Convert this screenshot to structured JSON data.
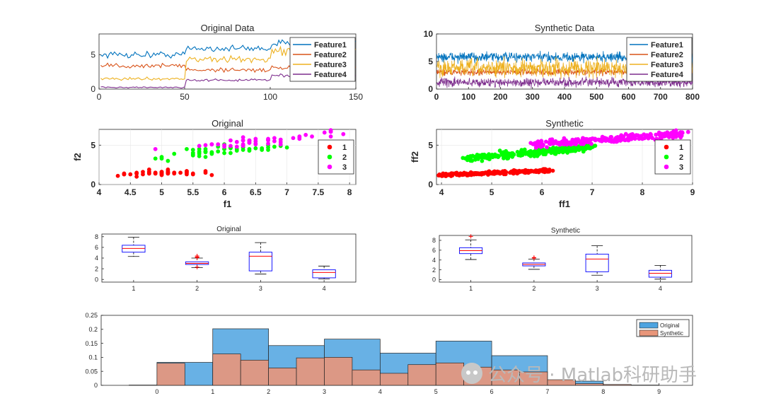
{
  "watermark": "公众号 · Matlab科研助手",
  "colors": {
    "feature": [
      "#0072BD",
      "#D95319",
      "#EDB120",
      "#7E2F8E"
    ],
    "cluster": [
      "#FF0000",
      "#00FF00",
      "#FF00FF"
    ],
    "box_blue": "#0000FF",
    "box_red": "#FF0000",
    "hist_original": "#4DA3E0",
    "hist_synthetic": "#E9967A"
  },
  "chart_data": [
    {
      "id": "original_data",
      "type": "line",
      "title": "Original Data",
      "xlim": [
        0,
        150
      ],
      "ylim": [
        0,
        8
      ],
      "xticks": [
        "0",
        "50",
        "100",
        "150"
      ],
      "yticks": [
        "0",
        "5"
      ],
      "legend": "top-right",
      "series": [
        {
          "name": "Feature1",
          "segments": [
            {
              "x": [
                1,
                50
              ],
              "mean": 5.0,
              "amp": 0.5
            },
            {
              "x": [
                51,
                100
              ],
              "mean": 5.9,
              "amp": 0.5
            },
            {
              "x": [
                101,
                150
              ],
              "mean": 6.6,
              "amp": 0.5
            }
          ]
        },
        {
          "name": "Feature2",
          "segments": [
            {
              "x": [
                1,
                50
              ],
              "mean": 3.4,
              "amp": 0.4
            },
            {
              "x": [
                51,
                100
              ],
              "mean": 2.8,
              "amp": 0.35
            },
            {
              "x": [
                101,
                150
              ],
              "mean": 3.0,
              "amp": 0.35
            }
          ]
        },
        {
          "name": "Feature3",
          "segments": [
            {
              "x": [
                1,
                50
              ],
              "mean": 1.5,
              "amp": 0.2
            },
            {
              "x": [
                51,
                100
              ],
              "mean": 4.3,
              "amp": 0.5
            },
            {
              "x": [
                101,
                150
              ],
              "mean": 5.5,
              "amp": 0.6
            }
          ]
        },
        {
          "name": "Feature4",
          "segments": [
            {
              "x": [
                1,
                50
              ],
              "mean": 0.25,
              "amp": 0.1
            },
            {
              "x": [
                51,
                100
              ],
              "mean": 1.3,
              "amp": 0.2
            },
            {
              "x": [
                101,
                150
              ],
              "mean": 2.0,
              "amp": 0.25
            }
          ]
        }
      ]
    },
    {
      "id": "synthetic_data",
      "type": "line",
      "title": "Synthetic Data",
      "xlim": [
        0,
        800
      ],
      "ylim": [
        0,
        10
      ],
      "xticks": [
        "0",
        "100",
        "200",
        "300",
        "400",
        "500",
        "600",
        "700",
        "800"
      ],
      "yticks": [
        "0",
        "5",
        "10"
      ],
      "legend": "top-right",
      "series": [
        {
          "name": "Feature1",
          "mean": 5.8,
          "amp": 0.9
        },
        {
          "name": "Feature2",
          "mean": 3.1,
          "amp": 0.6
        },
        {
          "name": "Feature3",
          "mean": 3.8,
          "amp": 1.6
        },
        {
          "name": "Feature4",
          "mean": 1.2,
          "amp": 0.8
        }
      ]
    },
    {
      "id": "original_scatter",
      "type": "scatter",
      "title": "Original",
      "xlabel": "f1",
      "ylabel": "f2",
      "xlim": [
        4,
        8.1
      ],
      "ylim": [
        0,
        7
      ],
      "xticks": [
        "4",
        "4.5",
        "5",
        "5.5",
        "6",
        "6.5",
        "7",
        "7.5",
        "8"
      ],
      "yticks": [
        "0",
        "5"
      ],
      "legend": "right",
      "clusters": [
        {
          "name": "1",
          "x": [
            5.1,
            4.9,
            4.7,
            4.6,
            5.0,
            5.4,
            4.6,
            5.0,
            4.4,
            4.9,
            5.4,
            4.8,
            4.8,
            4.3,
            5.8,
            5.7,
            5.4,
            5.1,
            5.7,
            5.1,
            5.4,
            5.1,
            4.6,
            5.1,
            4.8,
            5.0,
            5.0,
            5.2,
            5.2,
            4.7,
            4.8,
            5.4,
            5.2,
            5.5,
            4.9,
            5.0,
            5.5,
            4.9,
            4.4,
            5.1,
            5.0,
            4.5,
            4.4,
            5.0,
            5.1,
            4.8,
            5.1,
            4.6,
            5.3,
            5.0
          ],
          "y": [
            1.4,
            1.4,
            1.3,
            1.5,
            1.4,
            1.7,
            1.4,
            1.5,
            1.4,
            1.5,
            1.5,
            1.6,
            1.4,
            1.1,
            1.2,
            1.5,
            1.3,
            1.4,
            1.7,
            1.5,
            1.7,
            1.5,
            1.0,
            1.7,
            1.9,
            1.6,
            1.6,
            1.5,
            1.4,
            1.6,
            1.6,
            1.5,
            1.5,
            1.4,
            1.5,
            1.2,
            1.3,
            1.4,
            1.3,
            1.5,
            1.3,
            1.3,
            1.3,
            1.6,
            1.9,
            1.4,
            1.6,
            1.4,
            1.5,
            1.4
          ]
        },
        {
          "name": "2",
          "x": [
            7.0,
            6.4,
            6.9,
            5.5,
            6.5,
            5.7,
            6.3,
            4.9,
            6.6,
            5.2,
            5.0,
            5.9,
            6.0,
            6.1,
            5.6,
            6.7,
            5.6,
            5.8,
            6.2,
            5.6,
            5.9,
            6.1,
            6.3,
            6.1,
            6.4,
            6.6,
            6.8,
            6.7,
            6.0,
            5.7,
            5.5,
            5.5,
            5.8,
            6.0,
            5.4,
            6.0,
            6.7,
            6.3,
            5.6,
            5.5,
            5.5,
            6.1,
            5.8,
            5.0,
            5.6,
            5.7,
            5.7,
            6.2,
            5.1,
            5.7
          ],
          "y": [
            4.7,
            4.5,
            4.9,
            4.0,
            4.6,
            4.5,
            4.7,
            3.3,
            4.6,
            3.9,
            3.5,
            4.2,
            4.0,
            4.7,
            3.6,
            4.4,
            4.5,
            4.1,
            4.5,
            3.9,
            4.8,
            4.0,
            4.9,
            4.7,
            4.3,
            4.4,
            4.8,
            5.0,
            4.5,
            3.5,
            3.8,
            3.7,
            3.9,
            5.1,
            4.5,
            4.5,
            4.7,
            4.4,
            4.1,
            4.0,
            4.4,
            4.6,
            4.0,
            3.3,
            4.2,
            4.2,
            4.2,
            4.3,
            3.0,
            4.1
          ]
        },
        {
          "name": "3",
          "x": [
            6.3,
            5.8,
            7.1,
            6.3,
            6.5,
            7.6,
            4.9,
            7.3,
            6.7,
            7.2,
            6.5,
            6.4,
            6.8,
            5.7,
            5.8,
            6.4,
            6.5,
            7.7,
            7.7,
            6.0,
            6.9,
            5.6,
            7.7,
            6.3,
            6.7,
            7.2,
            6.2,
            6.1,
            6.4,
            7.2,
            7.4,
            7.9,
            6.4,
            6.3,
            6.1,
            7.7,
            6.3,
            6.4,
            6.0,
            6.9,
            6.7,
            6.9,
            5.8,
            6.8,
            6.7,
            6.7,
            6.3,
            6.5,
            6.2,
            5.9
          ],
          "y": [
            6.0,
            5.1,
            5.9,
            5.6,
            5.8,
            6.6,
            4.5,
            6.3,
            5.8,
            6.1,
            5.1,
            5.3,
            5.5,
            5.0,
            5.1,
            5.3,
            5.5,
            6.7,
            6.9,
            5.0,
            5.7,
            4.9,
            6.7,
            4.9,
            5.7,
            6.0,
            4.8,
            4.9,
            5.6,
            5.8,
            6.1,
            6.4,
            5.6,
            5.1,
            5.6,
            6.1,
            5.6,
            5.5,
            4.8,
            5.4,
            5.6,
            5.1,
            5.1,
            5.9,
            5.7,
            5.2,
            5.0,
            5.2,
            5.4,
            5.1
          ]
        }
      ]
    },
    {
      "id": "synthetic_scatter",
      "type": "scatter",
      "title": "Synthetic",
      "xlabel": "ff1",
      "ylabel": "ff2",
      "xlim": [
        3.9,
        9
      ],
      "ylim": [
        0,
        7
      ],
      "xticks": [
        "4",
        "5",
        "6",
        "7",
        "8",
        "9"
      ],
      "yticks": [
        "0",
        "5"
      ],
      "legend": "right",
      "clusters": [
        {
          "name": "1",
          "n": 240,
          "xmin": 4.0,
          "xmax": 6.2,
          "ymin": 1.0,
          "ymax": 2.0
        },
        {
          "name": "2",
          "n": 260,
          "xmin": 4.5,
          "xmax": 7.0,
          "ymin": 2.8,
          "ymax": 5.3
        },
        {
          "name": "3",
          "n": 260,
          "xmin": 5.8,
          "xmax": 8.8,
          "ymin": 4.6,
          "ymax": 6.9
        }
      ]
    },
    {
      "id": "original_box",
      "type": "box",
      "title": "Original",
      "xlim": [
        0.5,
        4.5
      ],
      "ylim": [
        -0.5,
        8.5
      ],
      "xticks": [
        "1",
        "2",
        "3",
        "4"
      ],
      "yticks": [
        "0",
        "2",
        "4",
        "6",
        "8"
      ],
      "boxes": [
        {
          "label": "1",
          "min": 4.3,
          "q1": 5.1,
          "median": 5.8,
          "q3": 6.4,
          "max": 7.9,
          "outliers": []
        },
        {
          "label": "2",
          "min": 2.2,
          "q1": 2.8,
          "median": 3.0,
          "q3": 3.3,
          "max": 4.0,
          "outliers": [
            4.4,
            4.1,
            4.2,
            2.3
          ]
        },
        {
          "label": "3",
          "min": 1.0,
          "q1": 1.6,
          "median": 4.35,
          "q3": 5.1,
          "max": 6.9,
          "outliers": []
        },
        {
          "label": "4",
          "min": 0.1,
          "q1": 0.3,
          "median": 1.3,
          "q3": 1.8,
          "max": 2.5,
          "outliers": []
        }
      ]
    },
    {
      "id": "synthetic_box",
      "type": "box",
      "title": "Synthetic",
      "xlim": [
        0.5,
        4.5
      ],
      "ylim": [
        -0.5,
        9
      ],
      "xticks": [
        "1",
        "2",
        "3",
        "4"
      ],
      "yticks": [
        "0",
        "2",
        "4",
        "6",
        "8"
      ],
      "boxes": [
        {
          "label": "1",
          "min": 4.1,
          "q1": 5.3,
          "median": 5.9,
          "q3": 6.5,
          "max": 8.1,
          "outliers": [
            8.8
          ]
        },
        {
          "label": "2",
          "min": 2.1,
          "q1": 2.8,
          "median": 3.1,
          "q3": 3.4,
          "max": 4.2,
          "outliers": [
            4.5,
            4.4
          ]
        },
        {
          "label": "3",
          "min": 0.9,
          "q1": 1.6,
          "median": 4.2,
          "q3": 5.2,
          "max": 6.9,
          "outliers": []
        },
        {
          "label": "4",
          "min": 0.1,
          "q1": 0.5,
          "median": 1.3,
          "q3": 1.9,
          "max": 2.9,
          "outliers": []
        }
      ]
    },
    {
      "id": "histogram",
      "type": "histogram",
      "xlim": [
        -1,
        9.6
      ],
      "ylim": [
        0,
        0.25
      ],
      "xticks": [
        "0",
        "1",
        "2",
        "3",
        "4",
        "5",
        "6",
        "7",
        "8",
        "9"
      ],
      "yticks": [
        "0",
        "0.05",
        "0.1",
        "0.15",
        "0.2",
        "0.25"
      ],
      "legend": "top-right",
      "series": [
        {
          "name": "Original",
          "bins": [
            [
              0,
              1,
              0.082
            ],
            [
              1,
              2,
              0.202
            ],
            [
              2,
              3,
              0.142
            ],
            [
              3,
              4,
              0.165
            ],
            [
              4,
              5,
              0.115
            ],
            [
              5,
              6,
              0.158
            ],
            [
              6,
              7,
              0.106
            ],
            [
              7,
              8,
              0.015
            ]
          ]
        },
        {
          "name": "Synthetic",
          "bins": [
            [
              -0.5,
              0,
              0.001
            ],
            [
              0,
              0.5,
              0.079
            ],
            [
              1,
              1.5,
              0.112
            ],
            [
              1.5,
              2,
              0.09
            ],
            [
              2,
              2.5,
              0.062
            ],
            [
              2.5,
              3,
              0.098
            ],
            [
              3,
              3.5,
              0.1
            ],
            [
              3.5,
              4,
              0.055
            ],
            [
              4,
              4.5,
              0.043
            ],
            [
              4.5,
              5,
              0.074
            ],
            [
              5,
              5.5,
              0.08
            ],
            [
              5.5,
              6,
              0.065
            ],
            [
              6,
              6.5,
              0.055
            ],
            [
              6.5,
              7,
              0.048
            ],
            [
              7,
              7.5,
              0.02
            ],
            [
              7.5,
              8,
              0.006
            ],
            [
              8,
              8.5,
              0.003
            ],
            [
              8.5,
              9,
              0.001
            ]
          ]
        }
      ]
    }
  ]
}
